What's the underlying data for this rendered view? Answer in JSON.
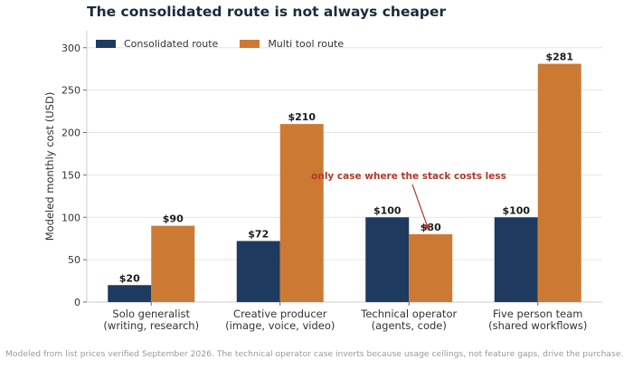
{
  "chart_data": {
    "type": "bar",
    "title": "The consolidated route is not always cheaper",
    "ylabel": "Modeled monthly cost (USD)",
    "xlabel": "",
    "ylim": [
      0,
      320
    ],
    "yticks": [
      "0",
      "50",
      "100",
      "150",
      "200",
      "250",
      "300"
    ],
    "grid": "horizontal",
    "legend_position": "top-left",
    "categories": [
      [
        "Solo generalist",
        "(writing, research)"
      ],
      [
        "Creative producer",
        "(image, voice, video)"
      ],
      [
        "Technical operator",
        "(agents, code)"
      ],
      [
        "Five person team",
        "(shared workflows)"
      ]
    ],
    "series": [
      {
        "name": "Consolidated route",
        "color": "#1f3a5f",
        "values": [
          20,
          72,
          100,
          100
        ],
        "labels": [
          "$20",
          "$72",
          "$100",
          "$100"
        ]
      },
      {
        "name": "Multi tool route",
        "color": "#cc7a33",
        "values": [
          90,
          210,
          80,
          281
        ],
        "labels": [
          "$90",
          "$210",
          "$80",
          "$281"
        ]
      }
    ],
    "annotation": {
      "text": "only case where the stack costs less",
      "color": "#b23a2a"
    },
    "footnote": "Modeled from list prices verified September 2026. The technical operator case inverts because usage ceilings, not feature gaps, drive the purchase."
  }
}
